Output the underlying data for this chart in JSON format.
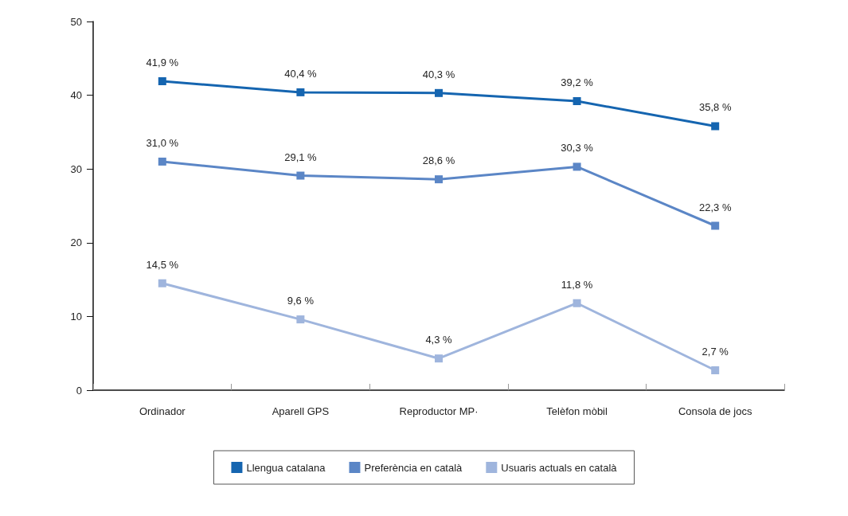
{
  "chart_data": {
    "type": "line",
    "categories": [
      "Ordinador",
      "Aparell GPS",
      "Reproductor MP·",
      "Telèfon mòbil",
      "Consola de jocs"
    ],
    "series": [
      {
        "name": "Llengua catalana",
        "color": "#1565b0",
        "values": [
          41.9,
          40.4,
          40.3,
          39.2,
          35.8
        ],
        "value_labels": [
          "41,9 %",
          "40,4 %",
          "40,3 %",
          "39,2 %",
          "35,8 %"
        ]
      },
      {
        "name": "Preferència en català",
        "color": "#5b86c6",
        "values": [
          31.0,
          29.1,
          28.6,
          30.3,
          22.3
        ],
        "value_labels": [
          "31,0 %",
          "29,1 %",
          "28,6 %",
          "30,3 %",
          "22,3 %"
        ]
      },
      {
        "name": "Usuaris actuals en català",
        "color": "#9fb5dd",
        "values": [
          14.5,
          9.6,
          4.3,
          11.8,
          2.7
        ],
        "value_labels": [
          "14,5 %",
          "9,6 %",
          "4,3 %",
          "11,8 %",
          "2,7 %"
        ]
      }
    ],
    "ylim": [
      0,
      50
    ],
    "yticks": [
      0,
      10,
      20,
      30,
      40,
      50
    ],
    "grid": false,
    "legend": "bottom",
    "marker": "square",
    "line_style": "solid"
  }
}
